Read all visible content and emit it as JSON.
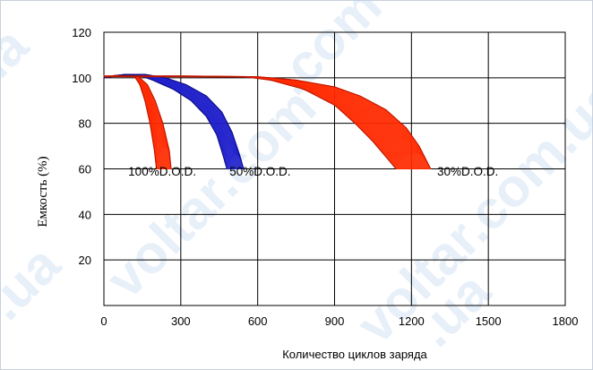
{
  "watermark": {
    "texts": [
      ".com",
      "voltar.com",
      "voltar.com.ua",
      ".ua",
      ".ua",
      "ua"
    ],
    "color": "#bcd3ee"
  },
  "chart_data": {
    "type": "area",
    "xlabel": "Количество циклов заряда",
    "ylabel": "Емкость (%)",
    "xlim": [
      0,
      1800
    ],
    "ylim": [
      0,
      120
    ],
    "xticks": [
      0,
      300,
      600,
      900,
      1200,
      1500,
      1800
    ],
    "yticks": [
      20,
      40,
      60,
      80,
      100,
      120
    ],
    "xtick_labels": [
      "0",
      "300",
      "600",
      "900",
      "1200",
      "1500",
      "1800"
    ],
    "ytick_labels": [
      "20",
      "40",
      "60",
      "80",
      "100",
      "120"
    ],
    "grid": true,
    "series": [
      {
        "annotation": "100%D.O.D.",
        "color": "#ff2a00",
        "upper": [
          [
            0,
            100
          ],
          [
            40,
            101
          ],
          [
            90,
            101.5
          ],
          [
            130,
            101
          ],
          [
            170,
            97
          ],
          [
            200,
            90
          ],
          [
            230,
            80
          ],
          [
            255,
            68
          ],
          [
            262,
            60
          ]
        ],
        "lower": [
          [
            0,
            100
          ],
          [
            40,
            100.8
          ],
          [
            90,
            101.2
          ],
          [
            120,
            100.5
          ],
          [
            140,
            97
          ],
          [
            160,
            90
          ],
          [
            180,
            80
          ],
          [
            197,
            68
          ],
          [
            205,
            60
          ]
        ]
      },
      {
        "annotation": "50%D.O.D.",
        "color": "#1f1fcc",
        "upper": [
          [
            0,
            100
          ],
          [
            80,
            101.5
          ],
          [
            160,
            101.5
          ],
          [
            240,
            100
          ],
          [
            320,
            97
          ],
          [
            400,
            92
          ],
          [
            460,
            85
          ],
          [
            500,
            76
          ],
          [
            530,
            66
          ],
          [
            545,
            60
          ]
        ],
        "lower": [
          [
            0,
            100
          ],
          [
            80,
            101.2
          ],
          [
            140,
            101
          ],
          [
            190,
            99
          ],
          [
            270,
            95
          ],
          [
            340,
            90
          ],
          [
            400,
            83
          ],
          [
            440,
            75
          ],
          [
            465,
            66
          ],
          [
            480,
            60
          ]
        ]
      },
      {
        "annotation": "30%D.O.D.",
        "color": "#ff2a00",
        "upper": [
          [
            0,
            100.8
          ],
          [
            300,
            100.8
          ],
          [
            600,
            100.5
          ],
          [
            750,
            99
          ],
          [
            900,
            96
          ],
          [
            1000,
            92
          ],
          [
            1100,
            86
          ],
          [
            1180,
            78
          ],
          [
            1230,
            70
          ],
          [
            1275,
            60
          ]
        ],
        "lower": [
          [
            0,
            100.5
          ],
          [
            300,
            100.5
          ],
          [
            560,
            100.3
          ],
          [
            650,
            99
          ],
          [
            780,
            95
          ],
          [
            900,
            88
          ],
          [
            980,
            80
          ],
          [
            1050,
            72
          ],
          [
            1110,
            64
          ],
          [
            1140,
            60
          ]
        ]
      }
    ],
    "annotations": [
      {
        "text": "100%D.O.D.",
        "x": 95,
        "y": 57
      },
      {
        "text": "50%D.O.D.",
        "x": 490,
        "y": 57
      },
      {
        "text": "30%D.O.D.",
        "x": 1300,
        "y": 57
      }
    ]
  }
}
